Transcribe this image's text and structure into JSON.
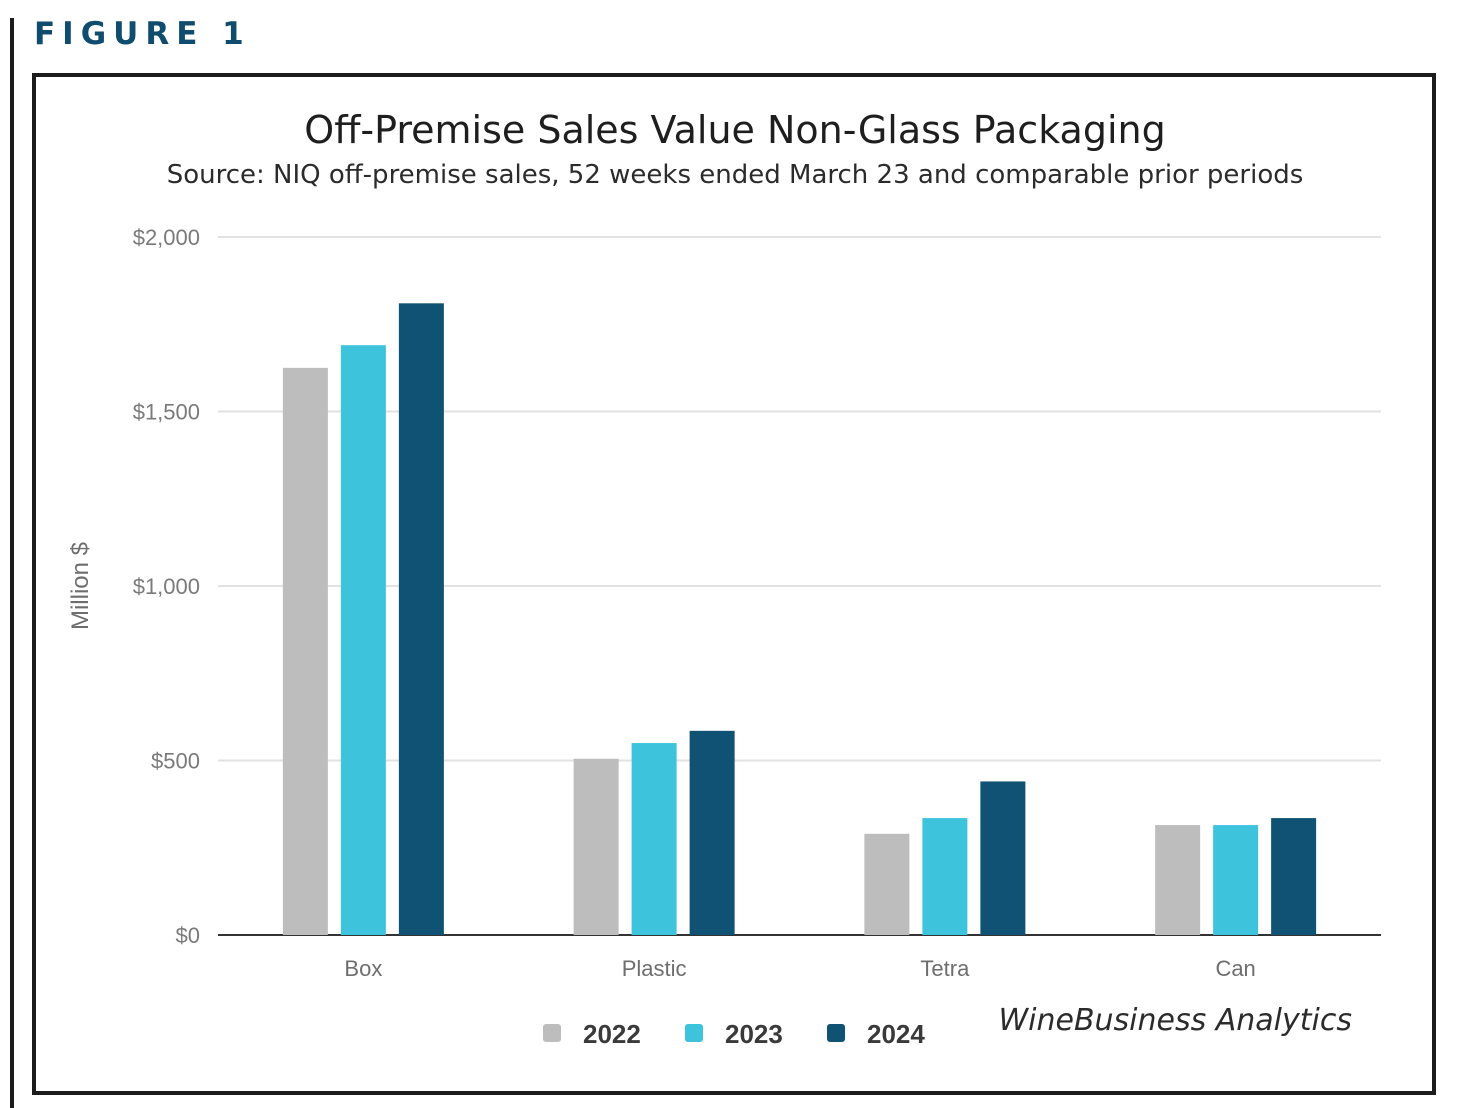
{
  "figure_label": "FIGURE 1",
  "credit": "WineBusiness Analytics",
  "colors": {
    "2022": "#bdbdbd",
    "2023": "#3ec3dc",
    "2024": "#0f5273",
    "frame": "#1c1c1c",
    "label": "#0f4c6e"
  },
  "chart_data": {
    "type": "bar",
    "title": "Off-Premise Sales Value Non-Glass Packaging",
    "subtitle": "Source: NIQ off-premise sales, 52 weeks ended March 23 and comparable prior periods",
    "xlabel": "",
    "ylabel": "Million $",
    "ylim": [
      0,
      2000
    ],
    "yticks": [
      0,
      500,
      1000,
      1500,
      2000
    ],
    "ytick_labels": [
      "$0",
      "$500",
      "$1,000",
      "$1,500",
      "$2,000"
    ],
    "grid": true,
    "legend_position": "bottom-center",
    "categories": [
      "Box",
      "Plastic",
      "Tetra",
      "Can"
    ],
    "series": [
      {
        "name": "2022",
        "color": "#bdbdbd",
        "values": [
          1625,
          505,
          290,
          315
        ]
      },
      {
        "name": "2023",
        "color": "#3ec3dc",
        "values": [
          1690,
          550,
          335,
          315
        ]
      },
      {
        "name": "2024",
        "color": "#0f5273",
        "values": [
          1810,
          585,
          440,
          335
        ]
      }
    ]
  }
}
